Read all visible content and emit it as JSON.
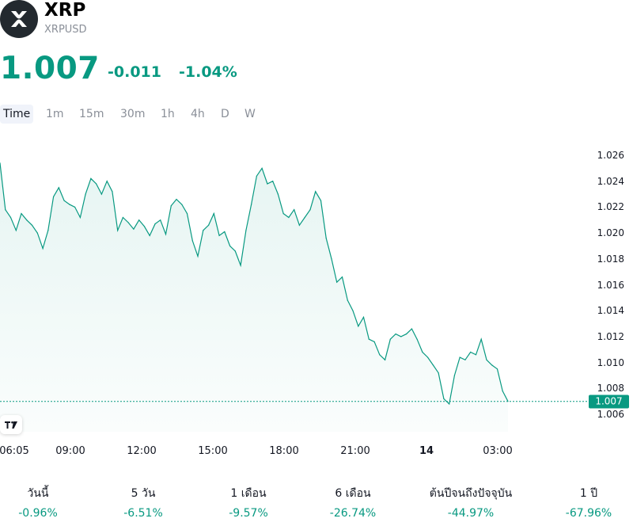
{
  "header": {
    "symbol": "XRP",
    "ticker": "XRPUSD",
    "logo_icon": "xrp-logo-icon"
  },
  "quote": {
    "last": "1.007",
    "change": "-0.011",
    "change_percent": "-1.04%"
  },
  "timeframes": [
    "Time",
    "1m",
    "15m",
    "30m",
    "1h",
    "4h",
    "D",
    "W"
  ],
  "active_timeframe": "Time",
  "colors": {
    "accent": "#089981",
    "area_fill": "#e6f5f2"
  },
  "chart_data": {
    "type": "area",
    "title": "",
    "xlabel": "",
    "ylabel": "",
    "ylim": [
      1.0055,
      1.0265
    ],
    "y_ticks": [
      "1.026",
      "1.024",
      "1.022",
      "1.020",
      "1.018",
      "1.016",
      "1.014",
      "1.012",
      "1.010",
      "1.008",
      "1.006"
    ],
    "x_ticks": [
      "06:05",
      "09:00",
      "12:00",
      "15:00",
      "18:00",
      "21:00",
      "14",
      "03:00"
    ],
    "x_ticks_bold": [
      false,
      false,
      false,
      false,
      false,
      false,
      true,
      false
    ],
    "current_price_label": "1.007",
    "series": [
      {
        "values": [
          1.0254,
          1.0218,
          1.0212,
          1.0202,
          1.0215,
          1.021,
          1.0206,
          1.02,
          1.0188,
          1.0202,
          1.0228,
          1.0235,
          1.0225,
          1.0222,
          1.022,
          1.0212,
          1.023,
          1.0242,
          1.0238,
          1.023,
          1.024,
          1.0232,
          1.0202,
          1.0212,
          1.0208,
          1.0203,
          1.021,
          1.0205,
          1.0198,
          1.0207,
          1.021,
          1.0199,
          1.0221,
          1.0226,
          1.0222,
          1.0215,
          1.0194,
          1.0182,
          1.0202,
          1.0206,
          1.0215,
          1.0198,
          1.0201,
          1.019,
          1.0186,
          1.0175,
          1.0202,
          1.0222,
          1.0244,
          1.025,
          1.0238,
          1.024,
          1.023,
          1.0215,
          1.0212,
          1.0218,
          1.0206,
          1.0212,
          1.0218,
          1.0232,
          1.0225,
          1.0196,
          1.018,
          1.0162,
          1.0166,
          1.0148,
          1.014,
          1.0128,
          1.0135,
          1.0118,
          1.0116,
          1.0106,
          1.0102,
          1.0118,
          1.0122,
          1.012,
          1.0122,
          1.0126,
          1.0118,
          1.0108,
          1.0104,
          1.0098,
          1.0092,
          1.0072,
          1.0068,
          1.009,
          1.0104,
          1.0102,
          1.0108,
          1.0106,
          1.0118,
          1.0102,
          1.0098,
          1.0095,
          1.0078,
          1.007
        ]
      }
    ]
  },
  "performance": [
    {
      "label": "วันนี้",
      "value": "-0.96%"
    },
    {
      "label": "5 วัน",
      "value": "-6.51%"
    },
    {
      "label": "1 เดือน",
      "value": "-9.57%"
    },
    {
      "label": "6 เดือน",
      "value": "-26.74%"
    },
    {
      "label": "ต้นปีจนถึงปัจจุบัน",
      "value": "-44.97%"
    },
    {
      "label": "1 ปี",
      "value": "-67.96%"
    }
  ]
}
